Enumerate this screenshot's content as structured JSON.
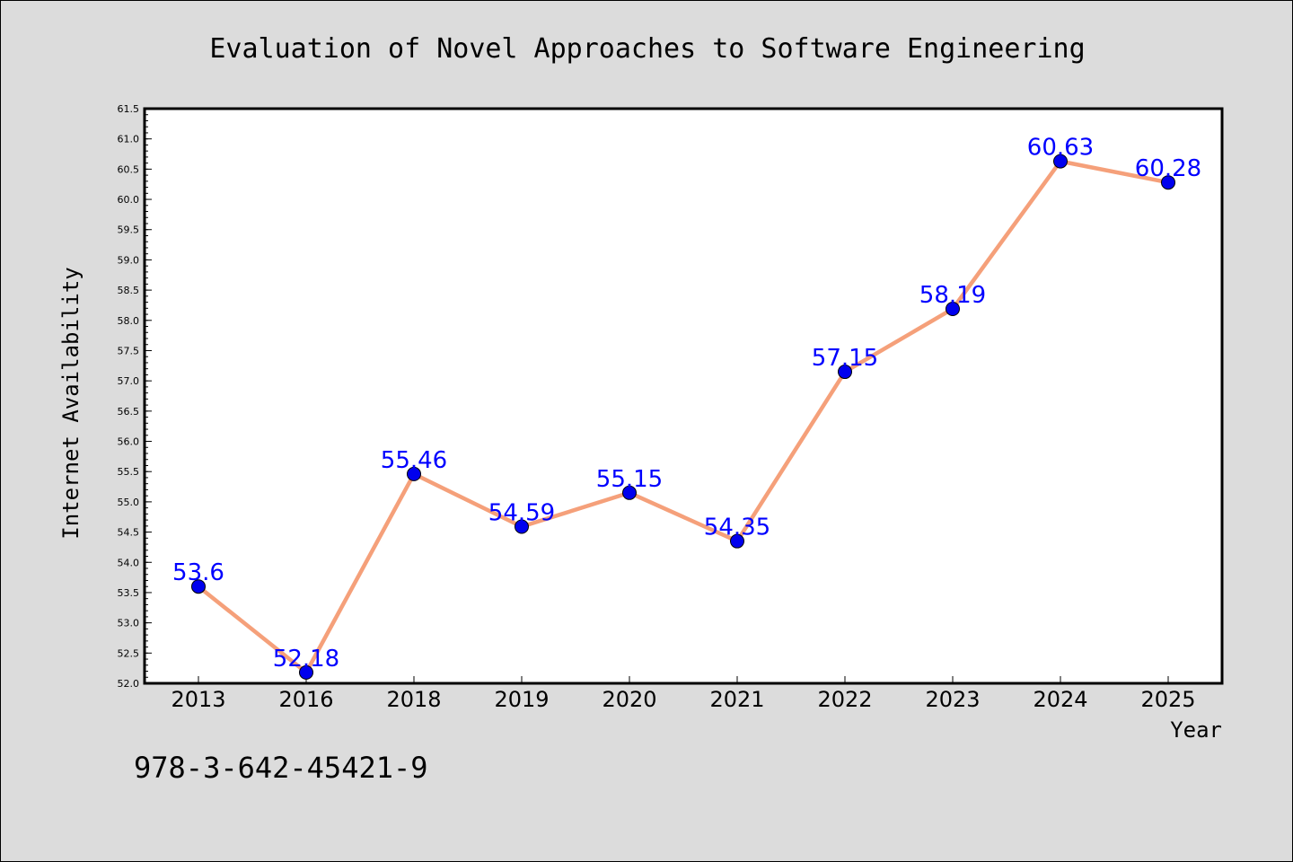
{
  "chart_data": {
    "type": "line",
    "title": "Evaluation of Novel Approaches to Software Engineering",
    "xlabel": "Year",
    "ylabel": "Internet Availability",
    "categories": [
      "2013",
      "2016",
      "2018",
      "2019",
      "2020",
      "2021",
      "2022",
      "2023",
      "2024",
      "2025"
    ],
    "series": [
      {
        "values": [
          53.6,
          52.18,
          55.46,
          54.59,
          55.15,
          54.35,
          57.15,
          58.19,
          60.63,
          60.28
        ],
        "data_labels": [
          "53.6",
          "52.18",
          "55.46",
          "54.59",
          "55.15",
          "54.35",
          "57.15",
          "58.19",
          "60.63",
          "60.28"
        ]
      }
    ],
    "ylim": [
      52.0,
      61.5
    ],
    "yticks": [
      "52.0",
      "52.5",
      "53.0",
      "53.5",
      "54.0",
      "54.5",
      "55.0",
      "55.5",
      "56.0",
      "56.5",
      "57.0",
      "57.5",
      "58.0",
      "58.5",
      "59.0",
      "59.5",
      "60.0",
      "60.5",
      "61.0",
      "61.5"
    ],
    "grid": false,
    "line_color": "#f5a07a",
    "marker_color": "#0000ee",
    "label_color": "#0000ff"
  },
  "footer_text": "978-3-642-45421-9"
}
